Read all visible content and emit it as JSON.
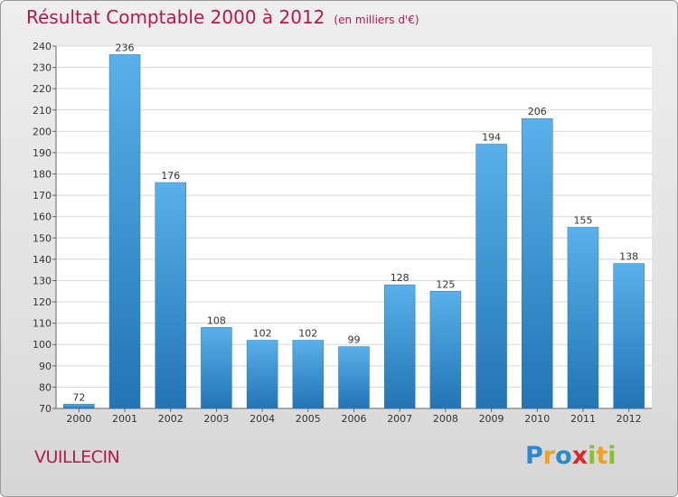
{
  "title": "Résultat Comptable 2000 à 2012",
  "unit": "(en milliers d'€)",
  "commune": "VUILLECIN",
  "logo": {
    "text": "Proxiti",
    "letters": [
      {
        "ch": "P",
        "color": "#2a8ad0"
      },
      {
        "ch": "r",
        "color": "#f0a020"
      },
      {
        "ch": "o",
        "color": "#2a8ad0"
      },
      {
        "ch": "x",
        "color": "#e0282c"
      },
      {
        "ch": "i",
        "color": "#8ac030"
      },
      {
        "ch": "t",
        "color": "#f0a020"
      },
      {
        "ch": "i",
        "color": "#8ac030"
      }
    ]
  },
  "colors": {
    "bar_top": "#5ab0ea",
    "bar_bottom": "#2274b5",
    "title": "#b5194b"
  },
  "chart_data": {
    "type": "bar",
    "categories": [
      "2000",
      "2001",
      "2002",
      "2003",
      "2004",
      "2005",
      "2006",
      "2007",
      "2008",
      "2009",
      "2010",
      "2011",
      "2012"
    ],
    "values": [
      72,
      236,
      176,
      108,
      102,
      102,
      99,
      128,
      125,
      194,
      206,
      155,
      138
    ],
    "ylim": [
      70,
      240
    ],
    "yticks": [
      70,
      80,
      90,
      100,
      110,
      120,
      130,
      140,
      150,
      160,
      170,
      180,
      190,
      200,
      210,
      220,
      230,
      240
    ],
    "grid": true,
    "xlabel": "",
    "ylabel": ""
  }
}
